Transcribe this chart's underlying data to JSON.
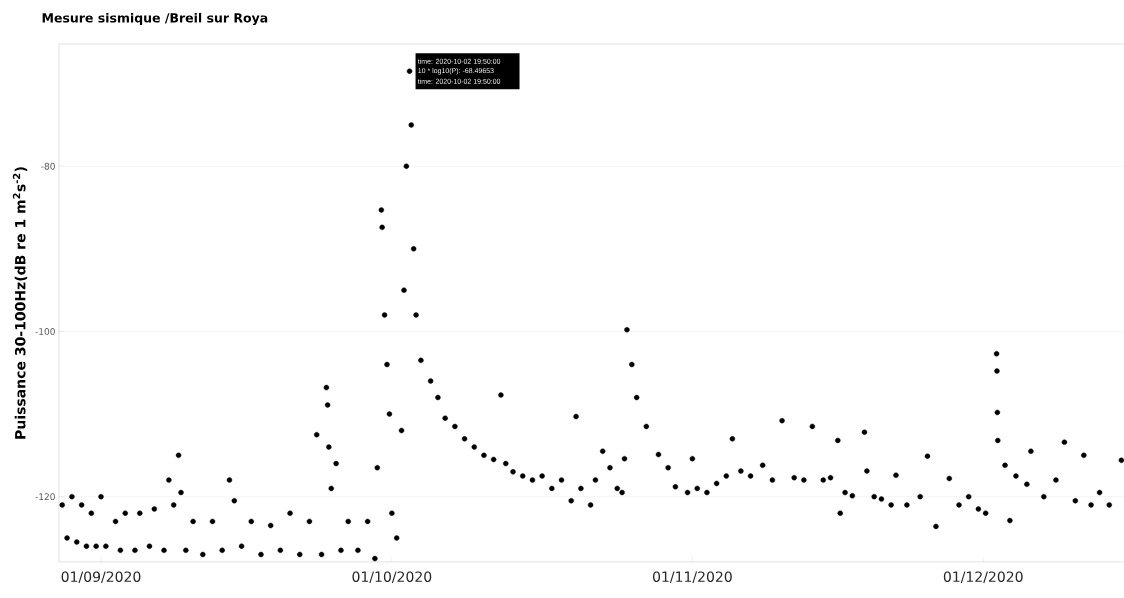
{
  "chart_data": {
    "type": "scatter",
    "title": "Mesure sismique /Breil sur Roya",
    "ylabel": "Puissance 30-100Hz(dB re 1 m$^{2}$s$^{-2}$)",
    "xlim": [
      "2020-08-27T16:00",
      "2020-12-15T12:00"
    ],
    "ylim": [
      -127.9,
      -65.2
    ],
    "xticks": [
      {
        "value": "2020-09-01",
        "label": "01/09/2020"
      },
      {
        "value": "2020-10-01",
        "label": "01/10/2020"
      },
      {
        "value": "2020-11-01",
        "label": "01/11/2020"
      },
      {
        "value": "2020-12-01",
        "label": "01/12/2020"
      }
    ],
    "yticks": [
      -80,
      -100,
      -120
    ],
    "grid": "y",
    "annotations": [
      {
        "text": "time: 2020-10-02 19:50:00",
        "x": "2020-10-02T19:50",
        "y": -68.5
      },
      {
        "text": "10 * log10(P):  -68.49653",
        "x": "2020-10-02T19:50",
        "y": -68.5
      },
      {
        "text": "time: 2020-10-02 19:50:00",
        "x": "2020-10-02T19:50",
        "y": -68.5
      }
    ],
    "series": [
      {
        "color": "#000000",
        "x": [
          "2020-08-28T00:00",
          "2020-08-28T12:00",
          "2020-08-29T00:00",
          "2020-08-29T12:00",
          "2020-08-30T00:00",
          "2020-08-30T12:00",
          "2020-08-31T00:00",
          "2020-08-31T12:00",
          "2020-09-01T00:00",
          "2020-09-01T12:00",
          "2020-09-02T12:00",
          "2020-09-03T00:00",
          "2020-09-03T12:00",
          "2020-09-04T12:00",
          "2020-09-05T00:00",
          "2020-09-06T00:00",
          "2020-09-06T12:00",
          "2020-09-07T12:00",
          "2020-09-08T00:00",
          "2020-09-08T12:00",
          "2020-09-09T00:00",
          "2020-09-09T06:00",
          "2020-09-09T18:00",
          "2020-09-10T12:00",
          "2020-09-11T12:00",
          "2020-09-12T12:00",
          "2020-09-13T12:00",
          "2020-09-14T06:00",
          "2020-09-14T18:00",
          "2020-09-15T12:00",
          "2020-09-16T12:00",
          "2020-09-17T12:00",
          "2020-09-18T12:00",
          "2020-09-19T12:00",
          "2020-09-20T12:00",
          "2020-09-21T12:00",
          "2020-09-22T12:00",
          "2020-09-23T06:00",
          "2020-09-23T18:00",
          "2020-09-24T06:00",
          "2020-09-24T09:00",
          "2020-09-24T12:00",
          "2020-09-24T18:00",
          "2020-09-25T06:00",
          "2020-09-25T18:00",
          "2020-09-26T12:00",
          "2020-09-27T12:00",
          "2020-09-28T12:00",
          "2020-09-29T06:00",
          "2020-09-29T12:00",
          "2020-09-29T22:00",
          "2020-09-30T00:00",
          "2020-09-30T06:00",
          "2020-09-30T12:00",
          "2020-09-30T18:00",
          "2020-10-01T00:00",
          "2020-10-01T12:00",
          "2020-10-02T00:00",
          "2020-10-02T06:00",
          "2020-10-02T12:00",
          "2020-10-02T19:50",
          "2020-10-03T00:00",
          "2020-10-03T06:00",
          "2020-10-03T12:00",
          "2020-10-04T00:00",
          "2020-10-05T00:00",
          "2020-10-05T18:00",
          "2020-10-06T12:00",
          "2020-10-07T12:00",
          "2020-10-08T12:00",
          "2020-10-09T12:00",
          "2020-10-10T12:00",
          "2020-10-11T12:00",
          "2020-10-12T06:00",
          "2020-10-12T18:00",
          "2020-10-13T12:00",
          "2020-10-14T12:00",
          "2020-10-15T12:00",
          "2020-10-16T12:00",
          "2020-10-17T12:00",
          "2020-10-18T12:00",
          "2020-10-19T12:00",
          "2020-10-20T00:00",
          "2020-10-20T12:00",
          "2020-10-21T12:00",
          "2020-10-22T00:00",
          "2020-10-22T18:00",
          "2020-10-23T12:00",
          "2020-10-24T06:00",
          "2020-10-24T18:00",
          "2020-10-25T00:00",
          "2020-10-25T06:00",
          "2020-10-25T18:00",
          "2020-10-26T06:00",
          "2020-10-27T06:00",
          "2020-10-28T12:00",
          "2020-10-29T12:00",
          "2020-10-30T06:00",
          "2020-10-31T12:00",
          "2020-11-01T00:00",
          "2020-11-01T12:00",
          "2020-11-02T12:00",
          "2020-11-03T12:00",
          "2020-11-04T12:00",
          "2020-11-05T03:00",
          "2020-11-06T00:00",
          "2020-11-07T00:00",
          "2020-11-08T06:00",
          "2020-11-09T06:00",
          "2020-11-10T06:00",
          "2020-11-11T12:00",
          "2020-11-12T12:00",
          "2020-11-13T09:00",
          "2020-11-14T12:00",
          "2020-11-15T06:00",
          "2020-11-16T00:00",
          "2020-11-16T06:00",
          "2020-11-16T18:00",
          "2020-11-17T12:00",
          "2020-11-18T18:00",
          "2020-11-19T00:00",
          "2020-11-19T18:00",
          "2020-11-20T12:00",
          "2020-11-21T12:00",
          "2020-11-22T00:00",
          "2020-11-23T03:00",
          "2020-11-24T12:00",
          "2020-11-25T06:00",
          "2020-11-26T03:00",
          "2020-11-27T12:00",
          "2020-11-28T12:00",
          "2020-11-29T12:00",
          "2020-11-30T12:00",
          "2020-12-01T06:00",
          "2020-12-02T09:00",
          "2020-12-02T10:00",
          "2020-12-02T11:00",
          "2020-12-02T12:00",
          "2020-12-03T06:00",
          "2020-12-03T18:00",
          "2020-12-04T09:00",
          "2020-12-05T12:00",
          "2020-12-05T22:00",
          "2020-12-07T06:00",
          "2020-12-08T12:00",
          "2020-12-09T09:00",
          "2020-12-10T12:00",
          "2020-12-11T09:00",
          "2020-12-12T03:00",
          "2020-12-13T00:00",
          "2020-12-14T00:00",
          "2020-12-15T06:00"
        ],
        "values": [
          -121.0,
          -125.0,
          -120.0,
          -125.5,
          -121.0,
          -126.0,
          -122.0,
          -126.0,
          -120.0,
          -126.0,
          -123.0,
          -126.5,
          -122.0,
          -126.5,
          -122.0,
          -126.0,
          -121.5,
          -126.5,
          -118.0,
          -121.0,
          -115.0,
          -119.5,
          -126.5,
          -123.0,
          -127.0,
          -123.0,
          -126.5,
          -118.0,
          -120.5,
          -126.0,
          -123.0,
          -127.0,
          -123.5,
          -126.5,
          -122.0,
          -127.0,
          -123.0,
          -112.5,
          -127.0,
          -106.8,
          -108.9,
          -114.0,
          -119.0,
          -116.0,
          -126.5,
          -123.0,
          -126.5,
          -123.0,
          -127.5,
          -116.5,
          -85.3,
          -87.4,
          -98.0,
          -104.0,
          -110.0,
          -122.0,
          -125.0,
          -112.0,
          -95.0,
          -80.0,
          -68.5,
          -75.0,
          -90.0,
          -98.0,
          -103.5,
          -106.0,
          -108.0,
          -110.5,
          -111.5,
          -113.0,
          -114.0,
          -115.0,
          -115.5,
          -107.7,
          -116.0,
          -117.0,
          -117.5,
          -118.0,
          -117.5,
          -119.0,
          -118.0,
          -120.5,
          -110.3,
          -119.0,
          -121.0,
          -118.0,
          -114.5,
          -116.5,
          -119.0,
          -119.5,
          -115.4,
          -99.8,
          -104.0,
          -108.0,
          -111.5,
          -114.9,
          -116.5,
          -118.8,
          -119.5,
          -115.4,
          -119.0,
          -119.5,
          -118.4,
          -117.5,
          -113.0,
          -116.9,
          -117.5,
          -116.2,
          -118.0,
          -110.8,
          -117.7,
          -118.0,
          -111.5,
          -118.0,
          -117.7,
          -113.2,
          -122.0,
          -119.5,
          -119.9,
          -112.2,
          -116.9,
          -120.0,
          -120.3,
          -121.0,
          -117.4,
          -121.0,
          -120.0,
          -115.1,
          -123.6,
          -117.8,
          -121.0,
          -120.0,
          -121.5,
          -122.0,
          -102.7,
          -104.8,
          -109.8,
          -113.2,
          -116.2,
          -122.9,
          -117.5,
          -118.5,
          -114.5,
          -120.0,
          -118.0,
          -113.4,
          -120.5,
          -115.0,
          -121.0,
          -119.5,
          -121.0,
          -115.6
        ]
      }
    ]
  }
}
